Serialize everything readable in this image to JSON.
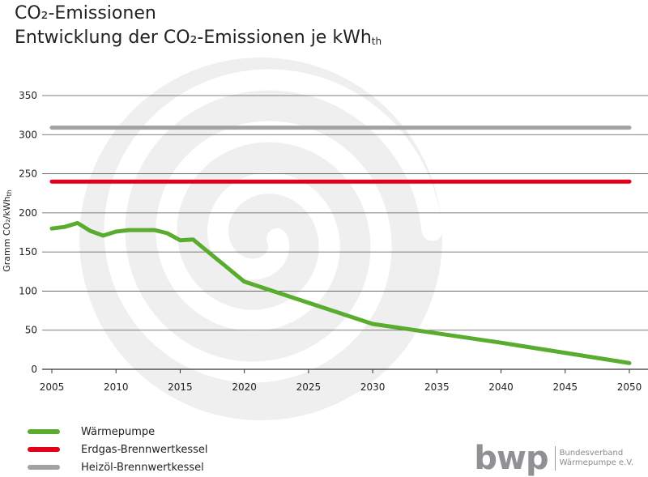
{
  "title_line1": "CO₂-Emissionen",
  "title_line2_main": "Entwicklung der CO₂-Emissionen je kWh",
  "title_line2_sub": "th",
  "ylabel_main": "Gramm CO₂/kWh",
  "ylabel_sub": "th",
  "logo": {
    "mark": "bwp",
    "line1": "Bundesverband",
    "line2": "Wärmepumpe e.V."
  },
  "chart_data": {
    "type": "line",
    "xlim": [
      2005,
      2050
    ],
    "ylim": [
      0,
      350
    ],
    "xticks": [
      2005,
      2010,
      2015,
      2020,
      2025,
      2030,
      2035,
      2040,
      2045,
      2050
    ],
    "yticks": [
      0,
      50,
      100,
      150,
      200,
      250,
      300,
      350
    ],
    "grid": "horizontal",
    "legend_position": "bottom-left",
    "series": [
      {
        "name": "Wärmepumpe",
        "color": "#5aac2e",
        "x": [
          2005,
          2006,
          2007,
          2008,
          2009,
          2010,
          2011,
          2012,
          2013,
          2014,
          2015,
          2016,
          2020,
          2030,
          2040,
          2050
        ],
        "y": [
          180,
          182,
          187,
          177,
          171,
          176,
          178,
          178,
          178,
          174,
          165,
          166,
          112,
          58,
          34,
          8
        ]
      },
      {
        "name": "Erdgas-Brennwertkessel",
        "color": "#e3001b",
        "x": [
          2005,
          2050
        ],
        "y": [
          240,
          240
        ]
      },
      {
        "name": "Heizöl-Brennwertkessel",
        "color": "#a2a2a2",
        "x": [
          2005,
          2050
        ],
        "y": [
          309,
          309
        ]
      }
    ]
  }
}
